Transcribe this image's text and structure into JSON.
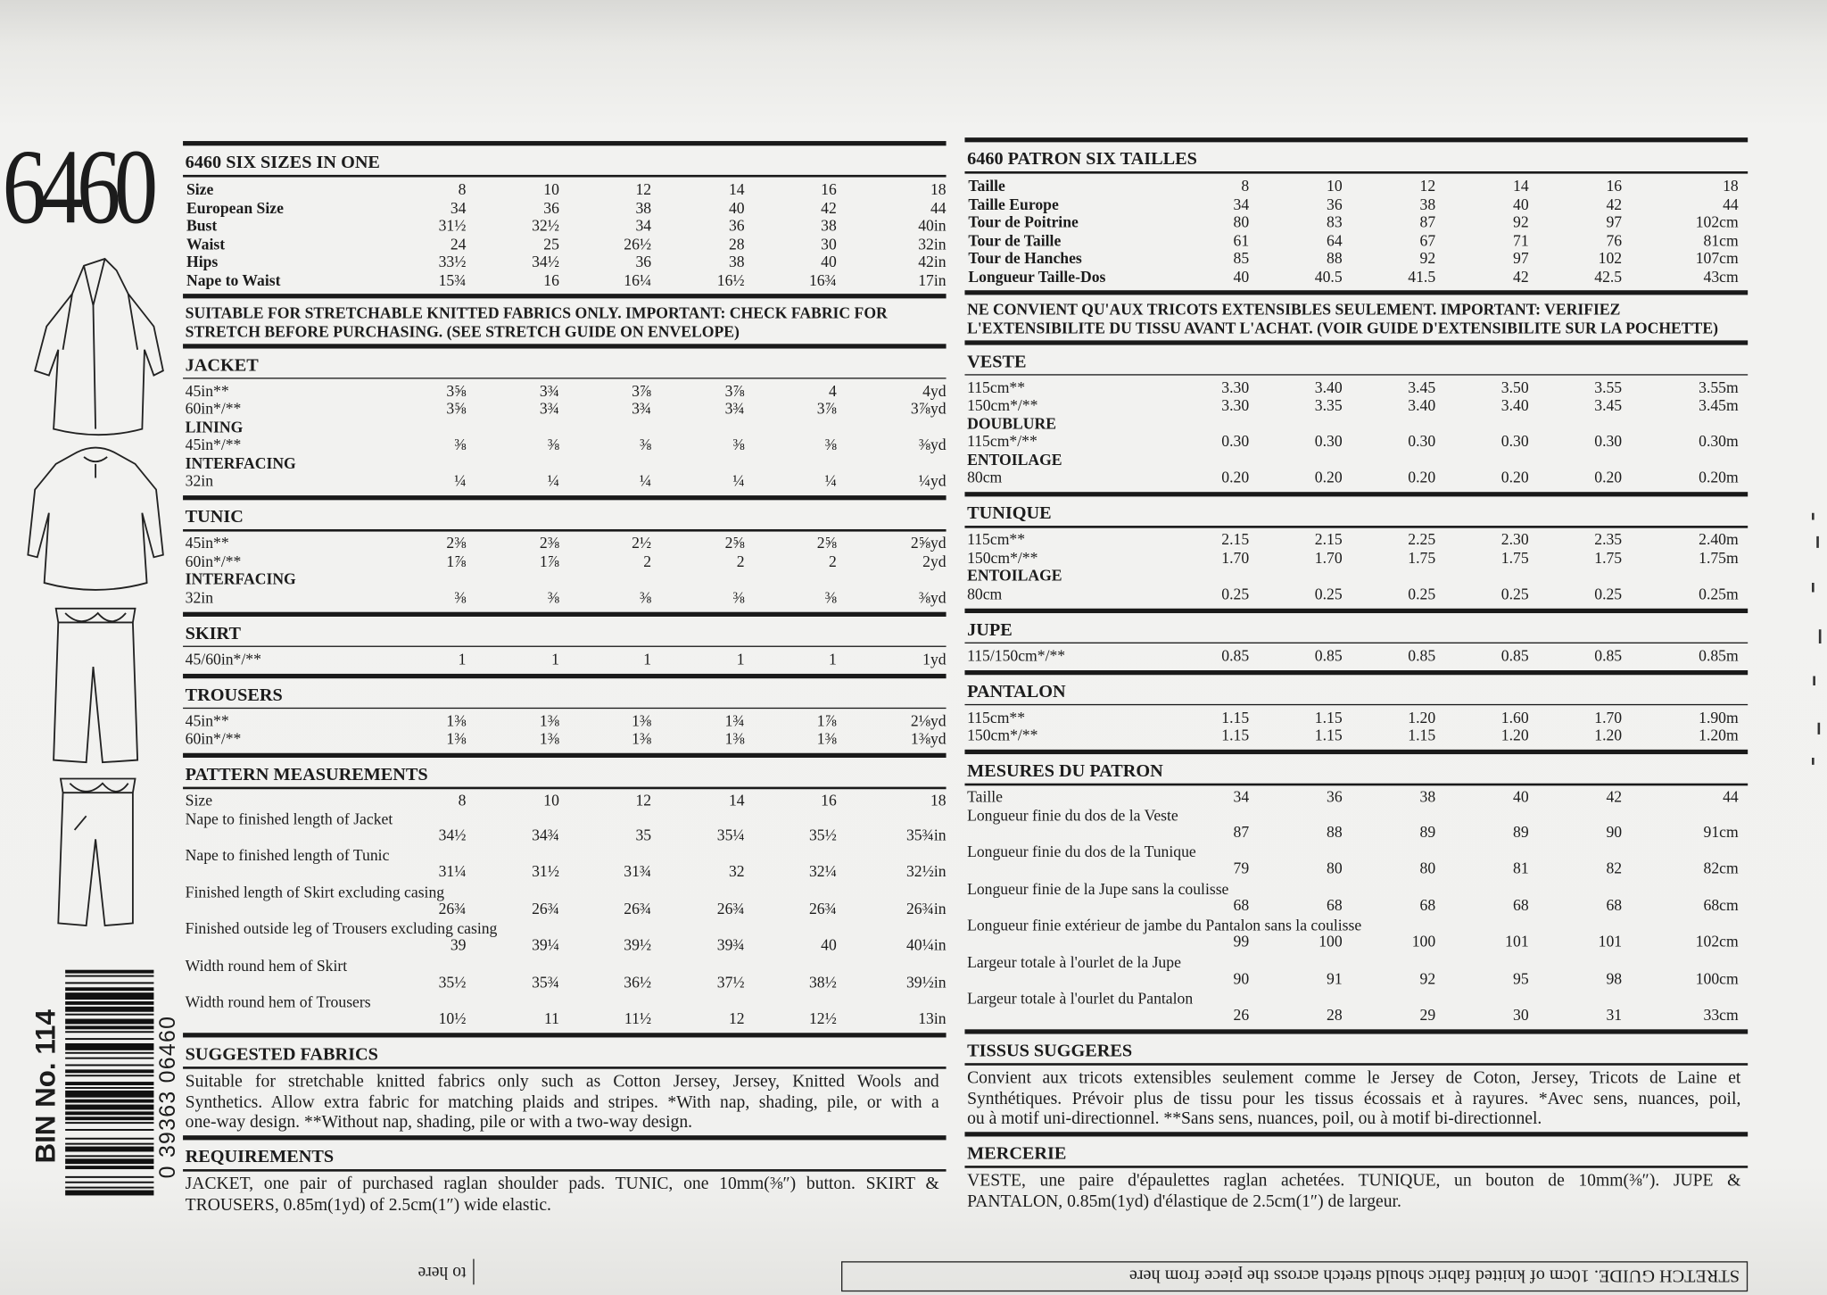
{
  "pattern_number": "6460",
  "english": {
    "title": "6460 SIX SIZES IN ONE",
    "size_chart": [
      {
        "label": "Size",
        "cells": [
          "8",
          "10",
          "12",
          "14",
          "16",
          "18"
        ]
      },
      {
        "label": "European Size",
        "cells": [
          "34",
          "36",
          "38",
          "40",
          "42",
          "44"
        ]
      },
      {
        "label": "Bust",
        "cells": [
          "31½",
          "32½",
          "34",
          "36",
          "38",
          "40in"
        ]
      },
      {
        "label": "Waist",
        "cells": [
          "24",
          "25",
          "26½",
          "28",
          "30",
          "32in"
        ]
      },
      {
        "label": "Hips",
        "cells": [
          "33½",
          "34½",
          "36",
          "38",
          "40",
          "42in"
        ]
      },
      {
        "label": "Nape to Waist",
        "cells": [
          "15¾",
          "16",
          "16¼",
          "16½",
          "16¾",
          "17in"
        ]
      }
    ],
    "notice": [
      "SUITABLE FOR STRETCHABLE KNITTED FABRICS ONLY. IMPORTANT: CHECK FABRIC FOR",
      "STRETCH BEFORE PURCHASING. (SEE STRETCH GUIDE ON ENVELOPE)"
    ],
    "yardage": [
      {
        "heading": "JACKET",
        "rows": [
          {
            "label": "45in**",
            "cells": [
              "3⅝",
              "3¾",
              "3⅞",
              "3⅞",
              "4",
              "4yd"
            ]
          },
          {
            "label": "60in*/**",
            "cells": [
              "3⅝",
              "3¾",
              "3¾",
              "3¾",
              "3⅞",
              "3⅞yd"
            ]
          },
          {
            "label": "LINING"
          },
          {
            "label": "45in*/**",
            "cells": [
              "⅜",
              "⅜",
              "⅜",
              "⅜",
              "⅜",
              "⅜yd"
            ]
          },
          {
            "label": "INTERFACING"
          },
          {
            "label": "32in",
            "cells": [
              "¼",
              "¼",
              "¼",
              "¼",
              "¼",
              "¼yd"
            ]
          }
        ]
      },
      {
        "heading": "TUNIC",
        "rows": [
          {
            "label": "45in**",
            "cells": [
              "2⅜",
              "2⅜",
              "2½",
              "2⅝",
              "2⅝",
              "2⅝yd"
            ]
          },
          {
            "label": "60in*/**",
            "cells": [
              "1⅞",
              "1⅞",
              "2",
              "2",
              "2",
              "2yd"
            ]
          },
          {
            "label": "INTERFACING"
          },
          {
            "label": "32in",
            "cells": [
              "⅜",
              "⅜",
              "⅜",
              "⅜",
              "⅜",
              "⅜yd"
            ]
          }
        ]
      },
      {
        "heading": "SKIRT",
        "rows": [
          {
            "label": "45/60in*/**",
            "cells": [
              "1",
              "1",
              "1",
              "1",
              "1",
              "1yd"
            ]
          }
        ]
      },
      {
        "heading": "TROUSERS",
        "rows": [
          {
            "label": "45in**",
            "cells": [
              "1⅜",
              "1⅜",
              "1⅜",
              "1¾",
              "1⅞",
              "2⅛yd"
            ]
          },
          {
            "label": "60in*/**",
            "cells": [
              "1⅜",
              "1⅜",
              "1⅜",
              "1⅜",
              "1⅜",
              "1⅜yd"
            ]
          }
        ]
      }
    ],
    "measurements": {
      "heading": "PATTERN MEASUREMENTS",
      "rows": [
        {
          "label": "Size",
          "cells": [
            "8",
            "10",
            "12",
            "14",
            "16",
            "18"
          ]
        },
        {
          "label": "Nape to finished length of Jacket",
          "cells": [
            "34½",
            "34¾",
            "35",
            "35¼",
            "35½",
            "35¾in"
          ]
        },
        {
          "label": "Nape to finished length of Tunic",
          "cells": [
            "31¼",
            "31½",
            "31¾",
            "32",
            "32¼",
            "32½in"
          ]
        },
        {
          "label": "Finished length of Skirt excluding casing",
          "cells": [
            "26¾",
            "26¾",
            "26¾",
            "26¾",
            "26¾",
            "26¾in"
          ]
        },
        {
          "label": "Finished outside leg of Trousers excluding casing",
          "cells": [
            "39",
            "39¼",
            "39½",
            "39¾",
            "40",
            "40¼in"
          ]
        },
        {
          "label": "Width round hem of Skirt",
          "cells": [
            "35½",
            "35¾",
            "36½",
            "37½",
            "38½",
            "39½in"
          ]
        },
        {
          "label": "Width round hem of Trousers",
          "cells": [
            "10½",
            "11",
            "11½",
            "12",
            "12½",
            "13in"
          ]
        }
      ]
    },
    "fabrics": {
      "heading": "SUGGESTED FABRICS",
      "lines": [
        "Suitable for stretchable knitted fabrics only such as Cotton Jersey, Jersey, Knitted Wools and",
        "Synthetics. Allow extra fabric for matching plaids and stripes. *With nap, shading, pile, or with a",
        "one-way design. **Without nap, shading, pile or with a two-way design."
      ]
    },
    "requirements": {
      "heading": "REQUIREMENTS",
      "lines": [
        "JACKET, one pair of purchased raglan shoulder pads. TUNIC, one 10mm(⅜″) button. SKIRT &",
        "TROUSERS, 0.85m(1yd) of 2.5cm(1″) wide elastic."
      ]
    }
  },
  "french": {
    "title": "6460 PATRON SIX TAILLES",
    "size_chart": [
      {
        "label": "Taille",
        "cells": [
          "8",
          "10",
          "12",
          "14",
          "16",
          "18"
        ]
      },
      {
        "label": "Taille Europe",
        "cells": [
          "34",
          "36",
          "38",
          "40",
          "42",
          "44"
        ]
      },
      {
        "label": "Tour de Poitrine",
        "cells": [
          "80",
          "83",
          "87",
          "92",
          "97",
          "102cm"
        ]
      },
      {
        "label": "Tour de Taille",
        "cells": [
          "61",
          "64",
          "67",
          "71",
          "76",
          "81cm"
        ]
      },
      {
        "label": "Tour de Hanches",
        "cells": [
          "85",
          "88",
          "92",
          "97",
          "102",
          "107cm"
        ]
      },
      {
        "label": "Longueur Taille-Dos",
        "cells": [
          "40",
          "40.5",
          "41.5",
          "42",
          "42.5",
          "43cm"
        ]
      }
    ],
    "notice": [
      "NE CONVIENT QU'AUX TRICOTS EXTENSIBLES SEULEMENT. IMPORTANT: VERIFIEZ",
      "L'EXTENSIBILITE DU TISSU AVANT L'ACHAT. (VOIR GUIDE D'EXTENSIBILITE SUR LA POCHETTE)"
    ],
    "yardage": [
      {
        "heading": "VESTE",
        "rows": [
          {
            "label": "115cm**",
            "cells": [
              "3.30",
              "3.40",
              "3.45",
              "3.50",
              "3.55",
              "3.55m"
            ]
          },
          {
            "label": "150cm*/**",
            "cells": [
              "3.30",
              "3.35",
              "3.40",
              "3.40",
              "3.45",
              "3.45m"
            ]
          },
          {
            "label": "DOUBLURE"
          },
          {
            "label": "115cm*/**",
            "cells": [
              "0.30",
              "0.30",
              "0.30",
              "0.30",
              "0.30",
              "0.30m"
            ]
          },
          {
            "label": "ENTOILAGE"
          },
          {
            "label": "80cm",
            "cells": [
              "0.20",
              "0.20",
              "0.20",
              "0.20",
              "0.20",
              "0.20m"
            ]
          }
        ]
      },
      {
        "heading": "TUNIQUE",
        "rows": [
          {
            "label": "115cm**",
            "cells": [
              "2.15",
              "2.15",
              "2.25",
              "2.30",
              "2.35",
              "2.40m"
            ]
          },
          {
            "label": "150cm*/**",
            "cells": [
              "1.70",
              "1.70",
              "1.75",
              "1.75",
              "1.75",
              "1.75m"
            ]
          },
          {
            "label": "ENTOILAGE"
          },
          {
            "label": "80cm",
            "cells": [
              "0.25",
              "0.25",
              "0.25",
              "0.25",
              "0.25",
              "0.25m"
            ]
          }
        ]
      },
      {
        "heading": "JUPE",
        "rows": [
          {
            "label": "115/150cm*/**",
            "cells": [
              "0.85",
              "0.85",
              "0.85",
              "0.85",
              "0.85",
              "0.85m"
            ]
          }
        ]
      },
      {
        "heading": "PANTALON",
        "rows": [
          {
            "label": "115cm**",
            "cells": [
              "1.15",
              "1.15",
              "1.20",
              "1.60",
              "1.70",
              "1.90m"
            ]
          },
          {
            "label": "150cm*/**",
            "cells": [
              "1.15",
              "1.15",
              "1.15",
              "1.20",
              "1.20",
              "1.20m"
            ]
          }
        ]
      }
    ],
    "measurements": {
      "heading": "MESURES DU PATRON",
      "rows": [
        {
          "label": "Taille",
          "cells": [
            "34",
            "36",
            "38",
            "40",
            "42",
            "44"
          ]
        },
        {
          "label": "Longueur finie du dos de la Veste",
          "cells": [
            "87",
            "88",
            "89",
            "89",
            "90",
            "91cm"
          ]
        },
        {
          "label": "Longueur finie du dos de la Tunique",
          "cells": [
            "79",
            "80",
            "80",
            "81",
            "82",
            "82cm"
          ]
        },
        {
          "label": "Longueur finie de la Jupe sans la coulisse",
          "cells": [
            "68",
            "68",
            "68",
            "68",
            "68",
            "68cm"
          ]
        },
        {
          "label": "Longueur finie extérieur de jambe du Pantalon sans la coulisse",
          "cells": [
            "99",
            "100",
            "100",
            "101",
            "101",
            "102cm"
          ]
        },
        {
          "label": "Largeur totale à l'ourlet de la Jupe",
          "cells": [
            "90",
            "91",
            "92",
            "95",
            "98",
            "100cm"
          ]
        },
        {
          "label": "Largeur totale à l'ourlet du Pantalon",
          "cells": [
            "26",
            "28",
            "29",
            "30",
            "31",
            "33cm"
          ]
        }
      ]
    },
    "fabrics": {
      "heading": "TISSUS SUGGERES",
      "lines": [
        "Convient aux tricots extensibles seulement comme le Jersey de Coton, Jersey, Tricots de Laine et",
        "Synthétiques. Prévoir plus de tissu pour les tissus écossais et à rayures. *Avec sens, nuances, poil,",
        "ou à motif uni-directionnel. **Sans sens, nuances, poil, ou à motif bi-directionnel."
      ]
    },
    "requirements": {
      "heading": "MERCERIE",
      "lines": [
        "VESTE, une paire d'épaulettes raglan achetées. TUNIQUE, un bouton de 10mm(⅜″). JUPE &",
        "PANTALON, 0.85m(1yd) d'élastique de 2.5cm(1″) de largeur."
      ]
    }
  },
  "barcode": {
    "bin": "BIN No. 114",
    "digits": "0 39363 06460"
  },
  "stretch_guide": {
    "text": "STRETCH GUIDE. 10cm of knitted fabric should stretch across the piece from here",
    "to_here": "to here"
  }
}
